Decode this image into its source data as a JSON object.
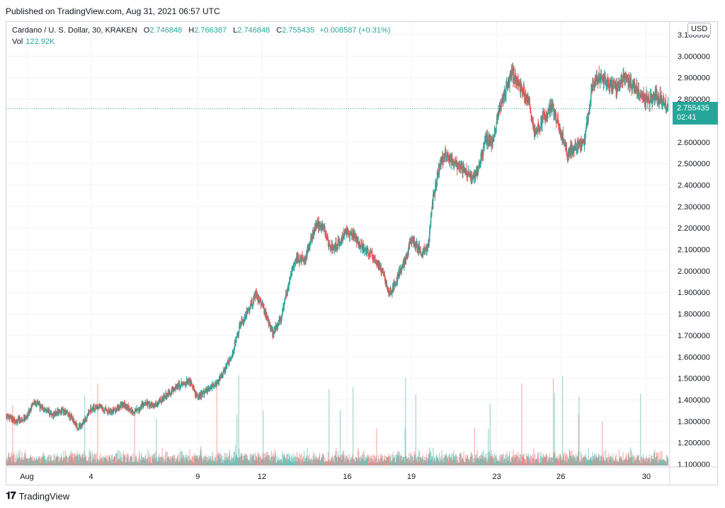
{
  "header": {
    "published": "Published on TradingView.com, Aug 31, 2021 06:57 UTC"
  },
  "legend": {
    "symbol": "Cardano / U. S. Dollar, 30, KRAKEN",
    "o_label": "O",
    "o_value": "2.746848",
    "h_label": "H",
    "h_value": "2.766387",
    "l_label": "L",
    "l_value": "2.746848",
    "c_label": "C",
    "c_value": "2.755435",
    "change": "+0.008587 (+0.31%)",
    "vol_label": "Vol",
    "vol_value": "122.92K"
  },
  "currency": "USD",
  "last_price": {
    "price": "2.755435",
    "countdown": "02:41"
  },
  "colors": {
    "up": "#26a69a",
    "down": "#ef5350",
    "grid": "#f0f3fa",
    "text": "#131722"
  },
  "chart_data": {
    "type": "candlestick",
    "interval": "30",
    "symbol": "ADAUSD",
    "exchange": "KRAKEN",
    "y_range": [
      1.1,
      3.1
    ],
    "y_ticks": [
      "3.100000",
      "3.000000",
      "2.900000",
      "2.800000",
      "2.600000",
      "2.500000",
      "2.400000",
      "2.300000",
      "2.200000",
      "2.100000",
      "2.000000",
      "1.900000",
      "1.800000",
      "1.700000",
      "1.600000",
      "1.500000",
      "1.400000",
      "1.300000",
      "1.200000",
      "1.100000"
    ],
    "x_ticks": [
      "Aug",
      "4",
      "9",
      "12",
      "16",
      "19",
      "23",
      "26",
      "30"
    ],
    "x_tick_days": [
      1,
      4,
      9,
      12,
      16,
      19,
      23,
      26,
      30
    ],
    "x_range_days": [
      0.0,
      31.3
    ],
    "price_path": [
      [
        0.0,
        1.33
      ],
      [
        0.5,
        1.3
      ],
      [
        1.0,
        1.32
      ],
      [
        1.3,
        1.39
      ],
      [
        1.8,
        1.36
      ],
      [
        2.2,
        1.33
      ],
      [
        2.6,
        1.35
      ],
      [
        3.0,
        1.33
      ],
      [
        3.4,
        1.27
      ],
      [
        3.7,
        1.3
      ],
      [
        4.0,
        1.36
      ],
      [
        4.4,
        1.37
      ],
      [
        4.9,
        1.34
      ],
      [
        5.5,
        1.38
      ],
      [
        6.0,
        1.34
      ],
      [
        6.5,
        1.38
      ],
      [
        7.0,
        1.37
      ],
      [
        7.5,
        1.42
      ],
      [
        8.0,
        1.46
      ],
      [
        8.6,
        1.49
      ],
      [
        9.0,
        1.41
      ],
      [
        9.5,
        1.45
      ],
      [
        10.0,
        1.49
      ],
      [
        10.3,
        1.55
      ],
      [
        10.6,
        1.61
      ],
      [
        11.0,
        1.75
      ],
      [
        11.4,
        1.82
      ],
      [
        11.7,
        1.89
      ],
      [
        12.1,
        1.82
      ],
      [
        12.5,
        1.71
      ],
      [
        12.9,
        1.78
      ],
      [
        13.2,
        1.92
      ],
      [
        13.6,
        2.06
      ],
      [
        14.0,
        2.05
      ],
      [
        14.3,
        2.15
      ],
      [
        14.6,
        2.22
      ],
      [
        14.9,
        2.2
      ],
      [
        15.2,
        2.1
      ],
      [
        15.6,
        2.13
      ],
      [
        16.0,
        2.19
      ],
      [
        16.4,
        2.15
      ],
      [
        16.8,
        2.1
      ],
      [
        17.2,
        2.07
      ],
      [
        17.6,
        2.01
      ],
      [
        18.0,
        1.89
      ],
      [
        18.3,
        1.96
      ],
      [
        18.7,
        2.04
      ],
      [
        19.0,
        2.15
      ],
      [
        19.5,
        2.08
      ],
      [
        19.8,
        2.12
      ],
      [
        20.0,
        2.33
      ],
      [
        20.3,
        2.48
      ],
      [
        20.6,
        2.55
      ],
      [
        21.0,
        2.5
      ],
      [
        21.5,
        2.47
      ],
      [
        21.9,
        2.42
      ],
      [
        22.2,
        2.49
      ],
      [
        22.5,
        2.62
      ],
      [
        22.8,
        2.59
      ],
      [
        23.1,
        2.75
      ],
      [
        23.4,
        2.83
      ],
      [
        23.7,
        2.92
      ],
      [
        24.1,
        2.86
      ],
      [
        24.5,
        2.79
      ],
      [
        24.8,
        2.63
      ],
      [
        25.2,
        2.72
      ],
      [
        25.6,
        2.76
      ],
      [
        25.9,
        2.68
      ],
      [
        26.3,
        2.55
      ],
      [
        26.7,
        2.58
      ],
      [
        27.1,
        2.6
      ],
      [
        27.5,
        2.88
      ],
      [
        27.8,
        2.9
      ],
      [
        28.2,
        2.88
      ],
      [
        28.6,
        2.85
      ],
      [
        29.0,
        2.9
      ],
      [
        29.3,
        2.87
      ],
      [
        29.7,
        2.83
      ],
      [
        30.1,
        2.79
      ],
      [
        30.5,
        2.82
      ],
      [
        31.0,
        2.76
      ],
      [
        31.3,
        2.755
      ]
    ],
    "volume_range": [
      0,
      1000
    ]
  }
}
